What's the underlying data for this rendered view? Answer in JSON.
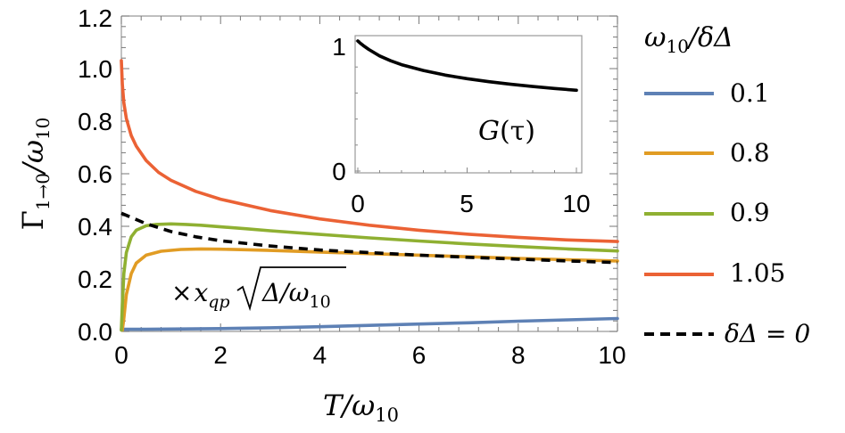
{
  "chart_data": {
    "type": "line",
    "x_axis": {
      "label_main": "T",
      "label_rest": "/ω",
      "label_sub": "10",
      "range": [
        0,
        10
      ],
      "ticks": [
        "0",
        "2",
        "4",
        "6",
        "8",
        "10"
      ]
    },
    "y_axis": {
      "label_gamma": "Γ",
      "label_gamma_sub": "1→0",
      "label_rest": "/ω",
      "label_rest_sub": "10",
      "range": [
        0,
        1.2
      ],
      "ticks": [
        "0.0",
        "0.2",
        "0.4",
        "0.6",
        "0.8",
        "1.0",
        "1.2"
      ]
    },
    "annotation": {
      "times": "×",
      "x": "x",
      "sub": "qp",
      "radicand": "Δ/ω",
      "radicand_sub": "10"
    },
    "legend": {
      "title_main": "ω",
      "title_sub": "10",
      "title_rest": "/δΔ",
      "entries": [
        "0.1",
        "0.8",
        "0.9",
        "1.05",
        "δΔ = 0"
      ]
    },
    "series": [
      {
        "name": "0.1",
        "color": "#5E81B5",
        "dashed": false,
        "x": [
          0,
          0.5,
          1,
          2,
          3,
          4,
          5,
          6,
          7,
          8,
          9,
          10
        ],
        "y": [
          0.008,
          0.008,
          0.009,
          0.011,
          0.014,
          0.018,
          0.023,
          0.028,
          0.033,
          0.039,
          0.044,
          0.049
        ]
      },
      {
        "name": "0.8",
        "color": "#E19C24",
        "dashed": false,
        "x": [
          0.02,
          0.05,
          0.1,
          0.2,
          0.3,
          0.5,
          0.8,
          1.2,
          1.6,
          2,
          2.5,
          3,
          4,
          5,
          6,
          7,
          8,
          9,
          10
        ],
        "y": [
          0.005,
          0.05,
          0.14,
          0.22,
          0.26,
          0.29,
          0.305,
          0.312,
          0.314,
          0.313,
          0.311,
          0.308,
          0.302,
          0.296,
          0.29,
          0.284,
          0.278,
          0.273,
          0.268
        ]
      },
      {
        "name": "0.9",
        "color": "#8FB032",
        "dashed": false,
        "x": [
          0.0,
          0.02,
          0.05,
          0.1,
          0.2,
          0.3,
          0.5,
          0.7,
          1.0,
          1.3,
          1.6,
          2,
          2.5,
          3,
          4,
          5,
          6,
          7,
          8,
          9,
          10
        ],
        "y": [
          0.005,
          0.1,
          0.22,
          0.3,
          0.36,
          0.385,
          0.402,
          0.407,
          0.409,
          0.407,
          0.404,
          0.398,
          0.391,
          0.383,
          0.369,
          0.356,
          0.344,
          0.333,
          0.323,
          0.314,
          0.306
        ]
      },
      {
        "name": "1.05",
        "color": "#EB6235",
        "dashed": false,
        "x": [
          0.0,
          0.02,
          0.05,
          0.1,
          0.2,
          0.3,
          0.5,
          0.75,
          1,
          1.5,
          2,
          3,
          4,
          5,
          6,
          7,
          8,
          9,
          10
        ],
        "y": [
          1.03,
          0.94,
          0.87,
          0.81,
          0.745,
          0.705,
          0.65,
          0.605,
          0.575,
          0.533,
          0.503,
          0.46,
          0.428,
          0.404,
          0.385,
          0.37,
          0.358,
          0.348,
          0.342
        ]
      },
      {
        "name": "δΔ = 0",
        "color": "#000000",
        "dashed": true,
        "x": [
          0,
          0.25,
          0.5,
          1,
          1.5,
          2,
          3,
          4,
          5,
          6,
          7,
          8,
          9,
          10
        ],
        "y": [
          0.45,
          0.43,
          0.41,
          0.38,
          0.36,
          0.345,
          0.325,
          0.31,
          0.3,
          0.29,
          0.282,
          0.275,
          0.268,
          0.262
        ]
      }
    ],
    "inset": {
      "label_main": "G",
      "label_rest": "(τ)",
      "x_range": [
        0,
        10
      ],
      "y_range": [
        0,
        1
      ],
      "x_ticks": [
        "0",
        "5",
        "10"
      ],
      "y_ticks": [
        "0",
        "1"
      ],
      "series": {
        "color": "#000000",
        "x": [
          0,
          0.1,
          0.25,
          0.5,
          1,
          1.5,
          2,
          3,
          4,
          5,
          6,
          7,
          8,
          9,
          10
        ],
        "y": [
          1.0,
          0.985,
          0.965,
          0.935,
          0.885,
          0.848,
          0.818,
          0.773,
          0.738,
          0.71,
          0.687,
          0.667,
          0.65,
          0.635,
          0.621
        ]
      }
    }
  }
}
